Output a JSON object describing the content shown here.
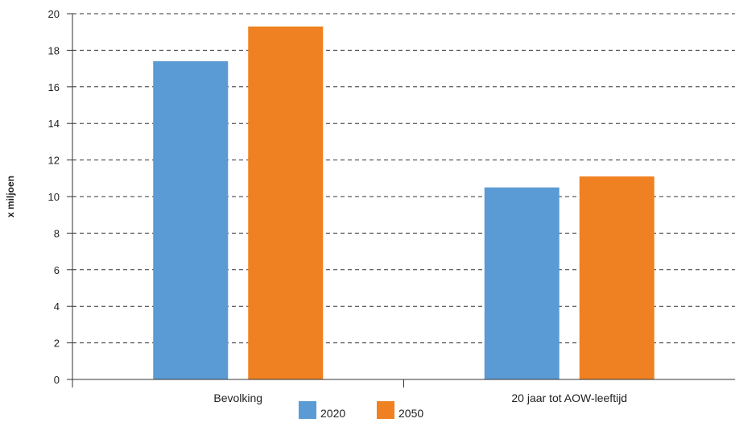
{
  "chart_data": {
    "type": "bar",
    "title": "",
    "xlabel": "",
    "ylabel": "x miljoen",
    "categories": [
      "Bevolking",
      "20 jaar tot AOW-leeftijd"
    ],
    "series": [
      {
        "name": "2020",
        "values": [
          17.4,
          10.5
        ],
        "color": "#5b9bd5"
      },
      {
        "name": "2050",
        "values": [
          19.3,
          11.1
        ],
        "color": "#f08122"
      }
    ],
    "ylim": [
      0,
      20
    ],
    "yticks": [
      0,
      2,
      4,
      6,
      8,
      10,
      12,
      14,
      16,
      18,
      20
    ],
    "grid": true,
    "legend_position": "bottom"
  }
}
